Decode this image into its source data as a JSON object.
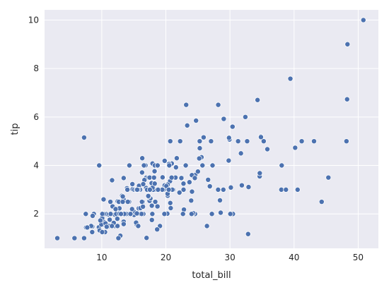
{
  "chart_data": {
    "type": "scatter",
    "xlabel": "total_bill",
    "ylabel": "tip",
    "xlim": [
      1.08,
      53.15
    ],
    "ylim": [
      0.58,
      10.42
    ],
    "x_ticks": [
      10,
      20,
      30,
      40,
      50
    ],
    "y_ticks": [
      2,
      4,
      6,
      8,
      10
    ],
    "grid": true,
    "colors": {
      "background": "#eaeaf2",
      "grid": "#ffffff",
      "marker": "#4c72b0",
      "marker_edge": "#ffffff"
    },
    "x": [
      16.99,
      10.34,
      21.01,
      23.68,
      24.59,
      25.29,
      8.77,
      26.88,
      15.04,
      14.78,
      10.27,
      35.26,
      15.42,
      18.43,
      14.83,
      21.58,
      10.33,
      16.29,
      16.97,
      20.65,
      17.92,
      20.29,
      15.77,
      39.42,
      19.82,
      17.81,
      13.37,
      12.69,
      21.7,
      19.65,
      9.55,
      18.35,
      15.06,
      20.69,
      17.78,
      24.06,
      16.31,
      16.93,
      18.69,
      31.27,
      16.04,
      17.46,
      13.94,
      9.68,
      30.4,
      18.29,
      22.23,
      32.4,
      28.55,
      18.04,
      12.54,
      10.29,
      34.81,
      9.94,
      25.56,
      19.49,
      38.01,
      26.41,
      11.24,
      48.27,
      20.29,
      13.81,
      11.02,
      18.29,
      17.59,
      20.08,
      16.45,
      3.07,
      20.23,
      15.01,
      12.02,
      17.07,
      26.86,
      25.28,
      14.73,
      10.51,
      17.92,
      27.2,
      22.76,
      17.29,
      19.44,
      16.66,
      10.07,
      32.68,
      15.98,
      34.83,
      13.03,
      18.28,
      24.71,
      21.16,
      28.97,
      22.49,
      5.75,
      16.32,
      22.75,
      40.17,
      27.28,
      12.03,
      21.01,
      12.46,
      11.35,
      15.38,
      44.3,
      22.42,
      20.92,
      15.36,
      20.49,
      25.21,
      18.24,
      14.31,
      14.0,
      7.25,
      38.07,
      23.95,
      25.71,
      17.31,
      29.93,
      10.65,
      12.43,
      24.08,
      11.69,
      13.42,
      14.26,
      15.95,
      12.48,
      29.8,
      8.52,
      14.52,
      11.38,
      22.82,
      19.08,
      20.27,
      11.17,
      12.26,
      18.26,
      8.51,
      10.33,
      14.15,
      16.0,
      13.16,
      17.47,
      34.3,
      41.19,
      27.05,
      16.43,
      8.35,
      18.64,
      11.87,
      9.78,
      7.51,
      14.07,
      13.13,
      17.26,
      24.55,
      19.77,
      29.85,
      48.17,
      25.0,
      13.39,
      16.49,
      21.5,
      12.66,
      16.21,
      13.81,
      17.51,
      24.52,
      20.76,
      31.71,
      10.59,
      10.63,
      50.81,
      15.81,
      7.25,
      31.85,
      16.82,
      32.9,
      17.89,
      14.48,
      9.6,
      34.63,
      34.65,
      23.33,
      45.35,
      23.17,
      40.55,
      20.69,
      20.9,
      30.46,
      18.15,
      23.1,
      15.69,
      19.81,
      28.44,
      15.48,
      16.58,
      7.56,
      10.34,
      43.11,
      13.0,
      13.51,
      18.71,
      12.74,
      13.0,
      16.4,
      20.53,
      16.47,
      26.59,
      38.73,
      24.27,
      12.76,
      30.06,
      25.89,
      48.33,
      13.27,
      28.17,
      12.9,
      28.15,
      11.59,
      7.74,
      30.14,
      12.16,
      13.42,
      8.58,
      15.98,
      13.42,
      16.27,
      10.09,
      20.45,
      13.28,
      22.12,
      24.01,
      15.69,
      11.61,
      10.77,
      15.53,
      10.07,
      12.6,
      32.83,
      35.83,
      29.03,
      27.18,
      22.67,
      17.82,
      18.78
    ],
    "y": [
      1.01,
      1.66,
      3.5,
      3.31,
      3.61,
      4.71,
      2.0,
      3.12,
      1.96,
      3.23,
      1.71,
      5.0,
      1.57,
      3.0,
      3.02,
      3.92,
      1.67,
      3.71,
      3.5,
      3.35,
      4.08,
      2.75,
      2.23,
      7.58,
      3.18,
      2.34,
      2.0,
      2.0,
      4.3,
      3.0,
      1.45,
      2.5,
      3.0,
      2.45,
      3.27,
      3.6,
      2.0,
      3.07,
      2.31,
      5.0,
      2.24,
      2.54,
      3.06,
      1.32,
      5.6,
      3.0,
      5.0,
      6.0,
      2.05,
      3.0,
      2.5,
      2.6,
      5.2,
      1.56,
      4.34,
      3.51,
      3.0,
      1.5,
      1.76,
      6.73,
      3.21,
      2.0,
      1.98,
      3.76,
      2.64,
      3.15,
      2.47,
      1.0,
      2.01,
      2.09,
      1.97,
      3.0,
      3.14,
      5.0,
      2.2,
      1.25,
      3.08,
      4.0,
      3.0,
      2.71,
      3.0,
      3.4,
      1.83,
      5.0,
      2.03,
      5.17,
      2.0,
      4.0,
      5.85,
      3.0,
      3.0,
      3.5,
      1.0,
      4.3,
      3.25,
      4.73,
      4.0,
      1.5,
      3.0,
      1.5,
      2.5,
      3.0,
      2.5,
      3.48,
      4.08,
      1.64,
      4.06,
      4.29,
      3.76,
      4.0,
      3.0,
      1.0,
      4.0,
      2.55,
      4.0,
      3.5,
      5.07,
      1.5,
      1.8,
      2.92,
      2.31,
      1.68,
      2.5,
      2.0,
      2.52,
      4.2,
      1.48,
      2.0,
      2.0,
      2.18,
      1.5,
      2.83,
      1.5,
      2.0,
      3.25,
      1.25,
      2.0,
      2.0,
      2.0,
      2.75,
      3.5,
      6.7,
      5.0,
      5.0,
      2.3,
      1.5,
      1.36,
      1.63,
      1.73,
      2.0,
      2.5,
      2.0,
      2.74,
      2.0,
      2.0,
      5.14,
      5.0,
      3.75,
      2.61,
      2.0,
      3.5,
      2.5,
      2.0,
      2.0,
      3.0,
      3.48,
      2.24,
      4.5,
      1.61,
      2.0,
      10.0,
      3.16,
      5.15,
      3.18,
      4.0,
      3.11,
      2.0,
      2.0,
      4.0,
      3.55,
      3.68,
      5.65,
      3.5,
      6.5,
      3.0,
      5.0,
      3.5,
      2.0,
      3.5,
      4.0,
      1.5,
      4.19,
      2.56,
      2.02,
      4.0,
      1.44,
      2.0,
      5.0,
      2.0,
      2.0,
      4.0,
      2.01,
      2.0,
      2.5,
      4.0,
      3.23,
      3.41,
      3.0,
      2.03,
      2.23,
      2.0,
      5.16,
      9.0,
      2.5,
      6.5,
      1.1,
      3.0,
      1.5,
      1.44,
      3.09,
      2.2,
      3.48,
      1.92,
      3.0,
      1.58,
      2.5,
      2.0,
      3.0,
      2.72,
      2.88,
      2.0,
      3.0,
      3.39,
      1.47,
      3.0,
      1.25,
      1.0,
      1.17,
      4.67,
      5.92,
      2.0,
      2.0,
      1.75,
      3.0
    ]
  }
}
